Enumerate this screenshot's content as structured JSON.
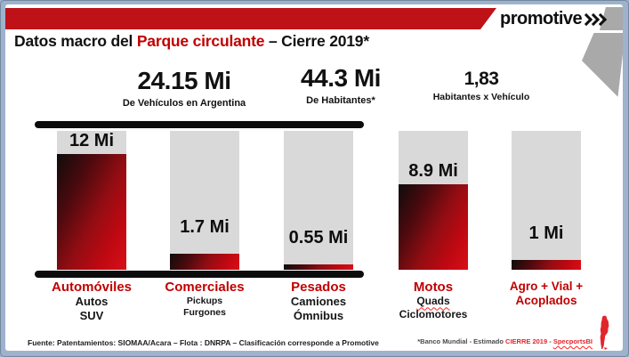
{
  "header": {
    "logo_text": "promotive",
    "title_prefix": "Datos macro del ",
    "title_highlight": "Parque circulante",
    "title_suffix": " – Cierre 2019*"
  },
  "stats": [
    {
      "value": "24.15 Mi",
      "label": "De Vehículos en Argentina"
    },
    {
      "value": "44.3 Mi",
      "label": "De Habitantes*"
    },
    {
      "value": "1,83",
      "label": "Habitantes x Vehículo"
    }
  ],
  "chart_data": {
    "type": "bar",
    "title": "Parque circulante – Cierre 2019",
    "unit": "Mi (millones de unidades)",
    "categories": [
      "Automóviles",
      "Comerciales",
      "Pesados",
      "Motos",
      "Agro + Vial + Acoplados"
    ],
    "values": [
      12,
      1.7,
      0.55,
      8.9,
      1
    ],
    "value_labels": [
      "12 Mi",
      "1.7 Mi",
      "0.55 Mi",
      "8.9 Mi",
      "1 Mi"
    ],
    "category_labels": [
      [
        "Automóviles"
      ],
      [
        "Comerciales"
      ],
      [
        "Pesados"
      ],
      [
        "Motos"
      ],
      [
        "Agro + Vial +",
        "Acoplados"
      ]
    ],
    "sub_labels": [
      [
        "Autos",
        "SUV"
      ],
      [
        "Pickups",
        "Furgones"
      ],
      [
        "Camiones",
        "Ómnibus"
      ],
      [
        "Quads",
        "Ciclomotores"
      ],
      []
    ],
    "bracket_group": [
      "Automóviles",
      "Comerciales",
      "Pesados"
    ],
    "ylim": [
      0,
      12
    ],
    "grid": false,
    "legend": false,
    "orientation": "vertical"
  },
  "footer": {
    "source": "Fuente: Patentamientos: SIOMAA/Acara – Flota : DNRPA – Clasificación corresponde a Promotive",
    "note_prefix": "*Banco Mundial -  Estimado ",
    "note_highlight": "CIERRE 2019",
    "note_sep": " -  ",
    "note_brand": "SpecportsBI"
  },
  "colors": {
    "banner_red": "#be1218",
    "accent_red": "#c00000",
    "bar_gray": "#d9d9d9",
    "bar_gradient_dark": "#0e0c0c",
    "bar_gradient_red": "#d90f18",
    "frame_blue": "#9fb2cc",
    "corner_gray": "#a9a9a9"
  }
}
